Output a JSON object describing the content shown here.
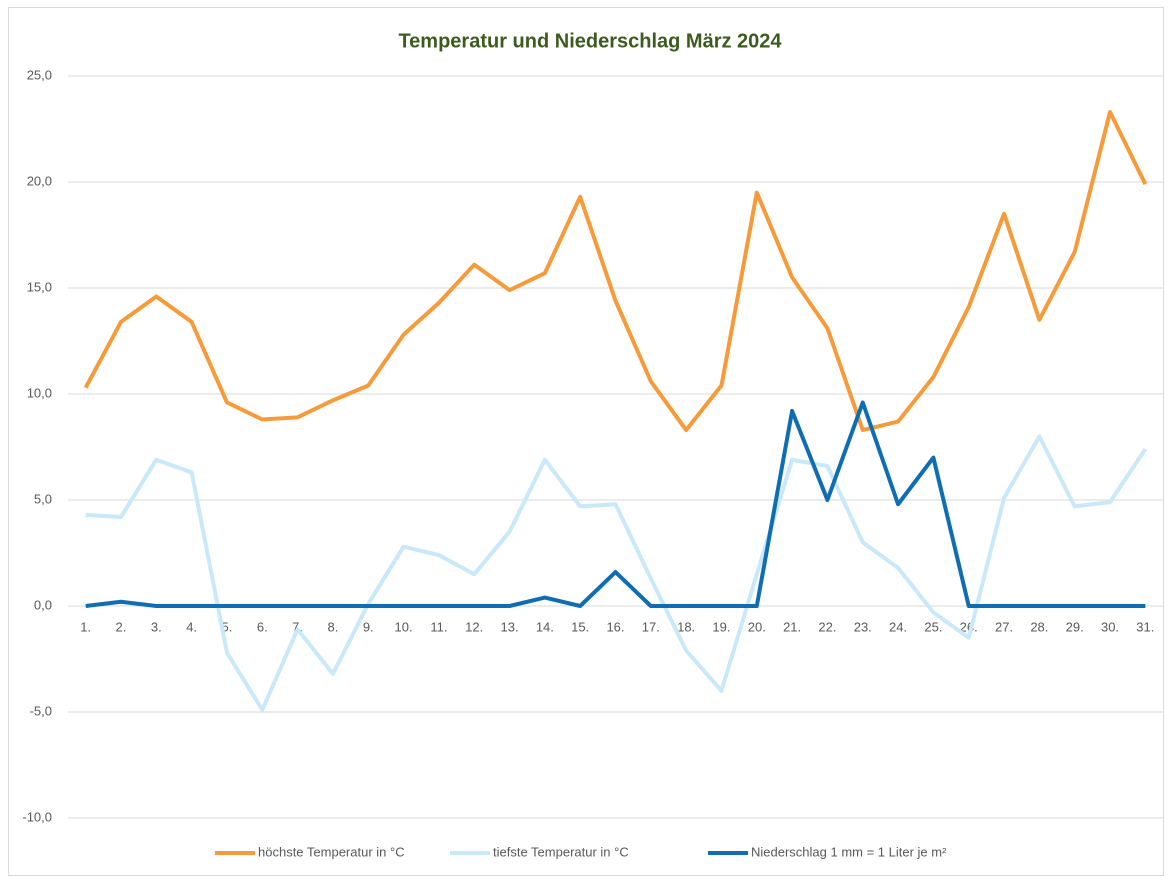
{
  "chart_data": {
    "type": "line",
    "title": "Temperatur und Niederschlag März 2024",
    "categories": [
      "1.",
      "2.",
      "3.",
      "4.",
      "5.",
      "6.",
      "7.",
      "8.",
      "9.",
      "10.",
      "11.",
      "12.",
      "13.",
      "14.",
      "15.",
      "16.",
      "17.",
      "18.",
      "19.",
      "20.",
      "21.",
      "22.",
      "23.",
      "24.",
      "25.",
      "26.",
      "27.",
      "28.",
      "29.",
      "30.",
      "31."
    ],
    "series": [
      {
        "name": "höchste Temperatur in °C",
        "color": "#f79a3a",
        "values": [
          10.3,
          13.4,
          14.6,
          13.4,
          9.6,
          8.8,
          8.9,
          9.7,
          10.4,
          12.8,
          14.3,
          16.1,
          14.9,
          15.7,
          19.3,
          14.4,
          10.6,
          8.3,
          10.4,
          19.5,
          15.5,
          13.1,
          8.3,
          8.7,
          10.8,
          14.1,
          18.5,
          13.5,
          16.7,
          23.3,
          19.9
        ]
      },
      {
        "name": "tiefste Temperatur in °C",
        "color": "#c9e8f9",
        "values": [
          4.3,
          4.2,
          6.9,
          6.3,
          -2.2,
          -4.9,
          -1.1,
          -3.2,
          0.1,
          2.8,
          2.4,
          1.5,
          3.5,
          6.9,
          4.7,
          4.8,
          1.3,
          -2.1,
          -4.0,
          1.5,
          6.9,
          6.6,
          3.0,
          1.8,
          -0.3,
          -1.5,
          5.1,
          8.0,
          4.7,
          4.9,
          7.4
        ]
      },
      {
        "name": "Niederschlag 1 mm =  1 Liter je m²",
        "color": "#0f6db3",
        "values": [
          0,
          0.2,
          0,
          0,
          0,
          0,
          0,
          0,
          0,
          0,
          0,
          0,
          0,
          0.4,
          0,
          1.6,
          0,
          0,
          0,
          0,
          9.2,
          5.0,
          9.6,
          4.8,
          7.0,
          0,
          0,
          0,
          0,
          0,
          0
        ]
      }
    ],
    "ylim": [
      -10,
      25
    ],
    "yticks": [
      {
        "value": -10,
        "label": "-10,0"
      },
      {
        "value": -5,
        "label": "-5,0"
      },
      {
        "value": 0,
        "label": "0,0"
      },
      {
        "value": 5,
        "label": "5,0"
      },
      {
        "value": 10,
        "label": "10,0"
      },
      {
        "value": 15,
        "label": "15,0"
      },
      {
        "value": 20,
        "label": "20,0"
      },
      {
        "value": 25,
        "label": "25,0"
      }
    ],
    "grid": true,
    "legend": "bottom"
  }
}
